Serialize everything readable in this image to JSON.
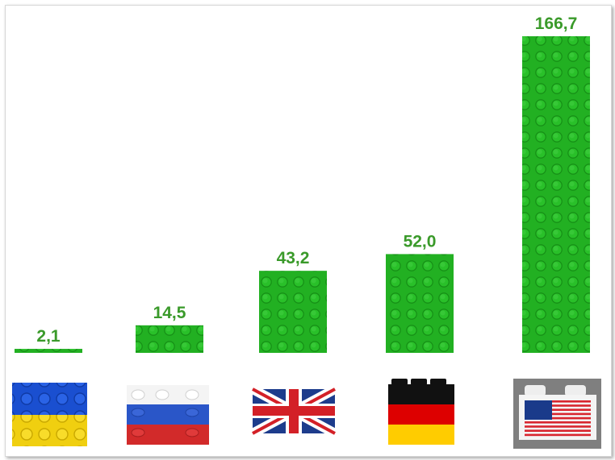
{
  "chart_data": {
    "type": "bar",
    "title": "",
    "xlabel": "",
    "ylabel": "",
    "categories": [
      "Ukraine",
      "Russia",
      "United Kingdom",
      "Germany",
      "USA"
    ],
    "values": [
      2.1,
      14.5,
      43.2,
      52.0,
      166.7
    ],
    "value_labels": [
      "2,1",
      "14,5",
      "43,2",
      "52,0",
      "166,7"
    ],
    "ylim": [
      0,
      166.7
    ],
    "grid": false,
    "legend": "none",
    "bar_color": "#22b022",
    "label_color": "#3a9a2a",
    "category_icons": [
      "ukraine-flag-brick-icon",
      "russia-flag-brick-icon",
      "uk-flag-brick-icon",
      "germany-flag-brick-icon",
      "usa-flag-brick-icon"
    ]
  }
}
